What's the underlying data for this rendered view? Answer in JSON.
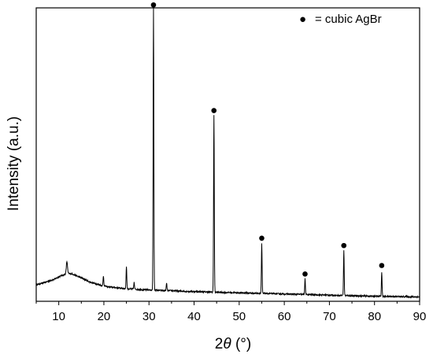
{
  "chart_data": {
    "type": "line",
    "title": "",
    "xlabel": {
      "prefix": "2",
      "symbol": "θ",
      "suffix": " (°)"
    },
    "ylabel": "Intensity (a.u.)",
    "xlim": [
      5,
      90
    ],
    "ylim": [
      0,
      100
    ],
    "x_ticks": [
      10,
      20,
      30,
      40,
      50,
      60,
      70,
      80,
      90
    ],
    "y_ticks_visible": false,
    "grid": false,
    "colors": {
      "line": "#000000",
      "marker": "#000000",
      "axis": "#000000"
    },
    "series": [
      {
        "baseline": [
          [
            5,
            5.6
          ],
          [
            7,
            6.5
          ],
          [
            9,
            7.5
          ],
          [
            10.5,
            8.7
          ],
          [
            12,
            9.5
          ],
          [
            13,
            9.3
          ],
          [
            15,
            8.0
          ],
          [
            17,
            6.5
          ],
          [
            19,
            5.6
          ],
          [
            21,
            4.9
          ],
          [
            23,
            4.6
          ],
          [
            25,
            4.3
          ],
          [
            28,
            4.0
          ],
          [
            31,
            3.8
          ],
          [
            35,
            3.6
          ],
          [
            40,
            3.3
          ],
          [
            45,
            3.1
          ],
          [
            50,
            2.9
          ],
          [
            55,
            2.7
          ],
          [
            60,
            2.5
          ],
          [
            65,
            2.3
          ],
          [
            70,
            2.1
          ],
          [
            75,
            1.9
          ],
          [
            80,
            1.7
          ],
          [
            85,
            1.6
          ],
          [
            90,
            1.5
          ]
        ],
        "peaks": [
          {
            "x": 11.8,
            "height": 4.2
          },
          {
            "x": 19.9,
            "height": 3.4
          },
          {
            "x": 25.0,
            "height": 7.6
          },
          {
            "x": 26.7,
            "height": 2.3
          },
          {
            "x": 31.0,
            "height": 96.0
          },
          {
            "x": 33.9,
            "height": 2.5
          },
          {
            "x": 44.4,
            "height": 60.5
          },
          {
            "x": 55.0,
            "height": 16.8
          },
          {
            "x": 64.6,
            "height": 5.3
          },
          {
            "x": 73.2,
            "height": 15.2
          },
          {
            "x": 81.6,
            "height": 8.2
          }
        ]
      }
    ],
    "markers": [
      {
        "x": 31.0,
        "y": 101.0
      },
      {
        "x": 44.4,
        "y": 65.0
      },
      {
        "x": 55.0,
        "y": 21.5
      },
      {
        "x": 64.6,
        "y": 9.3
      },
      {
        "x": 73.2,
        "y": 19.0
      },
      {
        "x": 81.6,
        "y": 12.2
      }
    ],
    "legend": {
      "position": "top-right",
      "symbol": "●",
      "text": "= cubic AgBr"
    }
  }
}
